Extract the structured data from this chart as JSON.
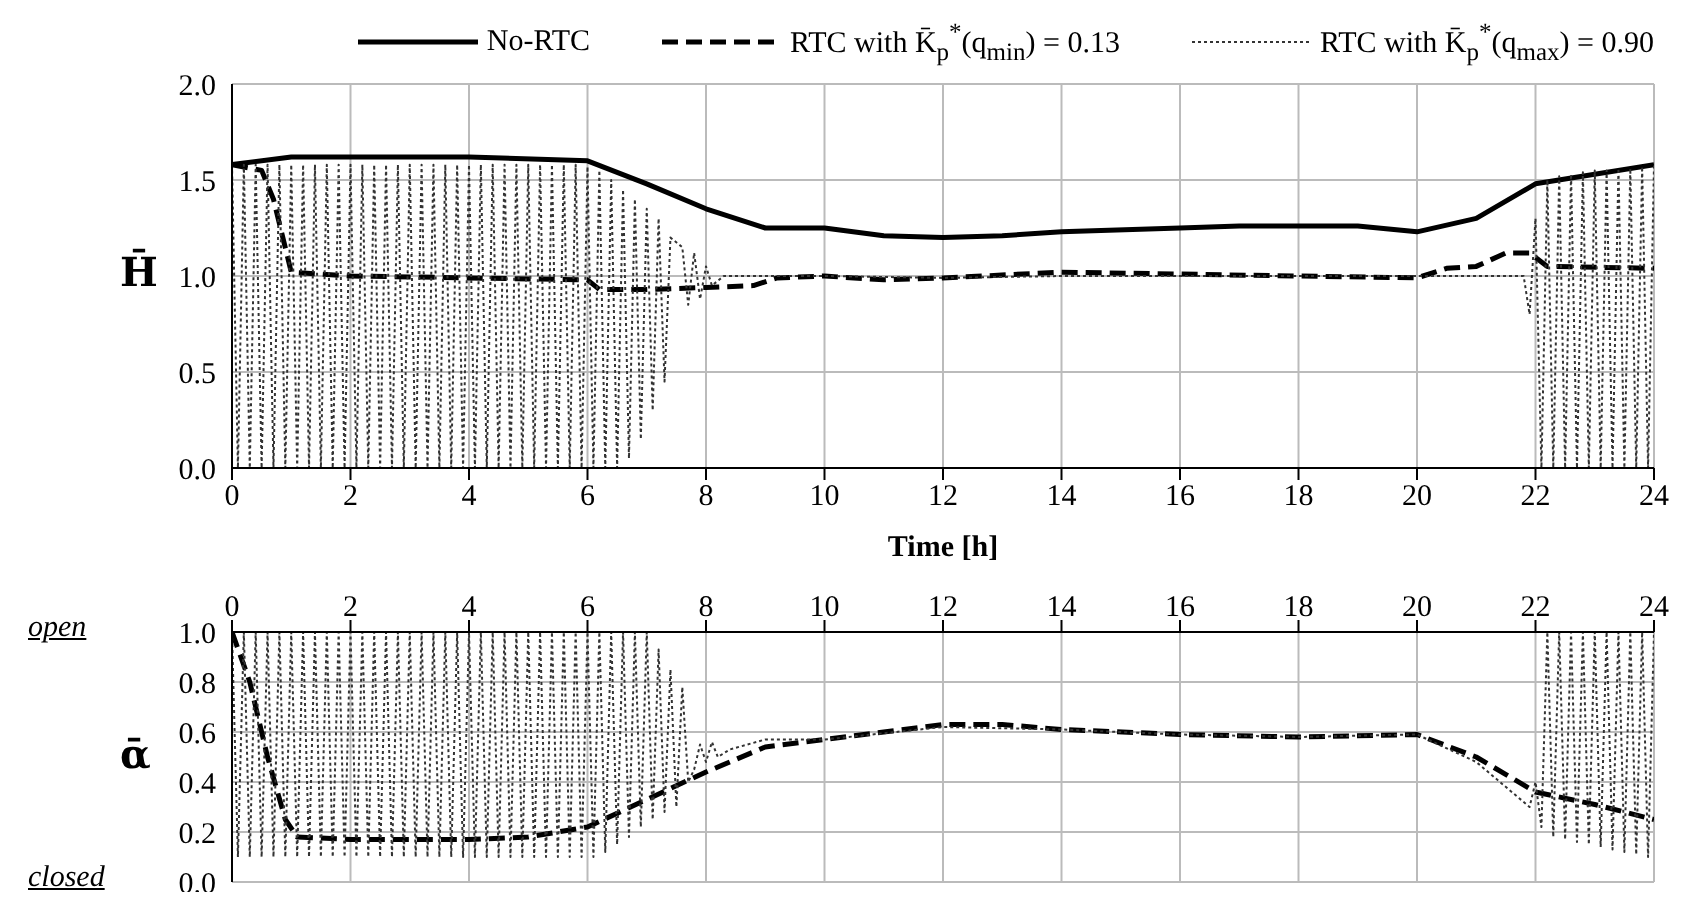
{
  "chart_data": [
    {
      "type": "line",
      "xlabel": "Time [h]",
      "ylabel": "H̄",
      "xlim": [
        0,
        24
      ],
      "xticks": [
        0,
        2,
        4,
        6,
        8,
        10,
        12,
        14,
        16,
        18,
        20,
        22,
        24
      ],
      "ylim": [
        0,
        2
      ],
      "yticks": [
        {
          "value": 0,
          "label": "0.0"
        },
        {
          "value": 0.5,
          "label": "0.5"
        },
        {
          "value": 1,
          "label": "1.0"
        },
        {
          "value": 1.5,
          "label": "1.5"
        },
        {
          "value": 2,
          "label": "2.0"
        }
      ],
      "grid": true,
      "legend": "top",
      "marker": "none",
      "series": [
        {
          "name": "No-RTC",
          "color": "#000000",
          "line_style": "solid",
          "x": [
            0,
            1,
            2,
            4,
            6,
            7,
            8,
            9,
            10,
            11,
            12,
            13,
            14,
            16,
            17,
            19,
            20,
            21,
            22,
            24
          ],
          "values": [
            1.58,
            1.62,
            1.62,
            1.62,
            1.6,
            1.48,
            1.35,
            1.25,
            1.25,
            1.21,
            1.2,
            1.21,
            1.23,
            1.25,
            1.26,
            1.26,
            1.23,
            1.3,
            1.48,
            1.58
          ]
        },
        {
          "name": "RTC with K̄$_{p}$$^{*}$(q$_{min}$) = 0.13",
          "color": "#000000",
          "line_style": "dashed",
          "x": [
            0,
            0.5,
            0.7,
            1,
            2,
            4,
            6,
            6.2,
            7,
            8,
            8.8,
            9.2,
            10,
            11,
            12,
            14,
            16,
            18,
            20,
            20.5,
            21,
            21.5,
            21.9,
            22.2,
            24
          ],
          "values": [
            1.58,
            1.55,
            1.4,
            1.02,
            1,
            0.99,
            0.98,
            0.93,
            0.93,
            0.94,
            0.95,
            0.99,
            1,
            0.98,
            0.99,
            1.02,
            1.01,
            1,
            0.99,
            1.04,
            1.05,
            1.12,
            1.12,
            1.05,
            1.04
          ]
        },
        {
          "name": "RTC with K̄$_{p}$$^{*}$(q$_{max}$) = 0.90",
          "color": "#333333",
          "line_style": "dotted",
          "x": [
            0,
            0.1,
            0.2,
            0.3,
            0.4,
            0.5,
            0.6,
            0.7,
            0.8,
            0.9,
            1,
            1.1,
            1.2,
            1.3,
            1.4,
            1.5,
            1.6,
            1.7,
            1.8,
            1.9,
            2,
            2.1,
            2.2,
            2.3,
            2.4,
            2.5,
            2.6,
            2.7,
            2.8,
            2.9,
            3,
            3.1,
            3.2,
            3.3,
            3.4,
            3.5,
            3.6,
            3.7,
            3.8,
            3.9,
            4,
            4.1,
            4.2,
            4.3,
            4.4,
            4.5,
            4.6,
            4.7,
            4.8,
            4.9,
            5,
            5.1,
            5.2,
            5.3,
            5.4,
            5.5,
            5.6,
            5.7,
            5.8,
            5.9,
            6,
            6.1,
            6.2,
            6.3,
            6.4,
            6.5,
            6.6,
            6.7,
            6.8,
            6.9,
            7,
            7.1,
            7.2,
            7.3,
            7.4,
            7.6,
            7.7,
            7.8,
            7.9,
            8,
            8.1,
            8.3,
            9,
            10,
            12,
            14,
            16,
            18,
            20,
            21,
            21.8,
            21.9,
            22,
            22.1,
            22.2,
            22.3,
            22.4,
            22.5,
            22.6,
            22.7,
            22.8,
            22.9,
            23,
            23.1,
            23.2,
            23.3,
            23.4,
            23.5,
            23.6,
            23.7,
            23.8,
            23.9,
            24
          ],
          "values": [
            1.58,
            0,
            1.58,
            0,
            1.58,
            0,
            1.58,
            0,
            1.58,
            0,
            1.58,
            0,
            1.58,
            0,
            1.58,
            0,
            1.58,
            0,
            1.58,
            0,
            1.58,
            0,
            1.58,
            0,
            1.58,
            0,
            1.58,
            0,
            1.58,
            0,
            1.58,
            0,
            1.58,
            0,
            1.58,
            0,
            1.58,
            0,
            1.58,
            0,
            1.58,
            0,
            1.58,
            0,
            1.58,
            0,
            1.58,
            0,
            1.58,
            0,
            1.58,
            0,
            1.58,
            0,
            1.58,
            0,
            1.58,
            0,
            1.58,
            0,
            1.57,
            0,
            1.55,
            0,
            1.5,
            0,
            1.45,
            0.05,
            1.4,
            0.15,
            1.35,
            0.3,
            1.3,
            0.45,
            1.2,
            1.15,
            0.85,
            1.12,
            0.88,
            1.05,
            0.95,
            1,
            1,
            1,
            0.99,
            1,
            1,
            1,
            1,
            1,
            1,
            0.8,
            1.3,
            0,
            1.5,
            0,
            1.52,
            0,
            1.53,
            0,
            1.54,
            0,
            1.55,
            0,
            1.55,
            0,
            1.56,
            0,
            1.56,
            0,
            1.57,
            0,
            1.58
          ]
        }
      ]
    },
    {
      "type": "line",
      "ylabel": "ᾱ",
      "xlim": [
        0,
        24
      ],
      "xticks": [
        0,
        2,
        4,
        6,
        8,
        10,
        12,
        14,
        16,
        18,
        20,
        22,
        24
      ],
      "ylim": [
        0,
        1
      ],
      "yticks": [
        {
          "value": 0,
          "label": "0.0"
        },
        {
          "value": 0.2,
          "label": "0.2"
        },
        {
          "value": 0.4,
          "label": "0.4"
        },
        {
          "value": 0.6,
          "label": "0.6"
        },
        {
          "value": 0.8,
          "label": "0.8"
        },
        {
          "value": 1,
          "label": "1.0"
        }
      ],
      "grid": true,
      "marker": "none",
      "annotations": [
        "open",
        "closed"
      ],
      "series": [
        {
          "color": "#000000",
          "line_style": "dashed",
          "x": [
            0,
            0.3,
            0.6,
            0.9,
            1.1,
            2,
            4,
            5,
            6,
            7,
            8,
            9,
            10,
            11,
            12,
            13,
            14,
            16,
            18,
            20,
            21,
            22,
            23,
            24
          ],
          "values": [
            1,
            0.8,
            0.5,
            0.25,
            0.18,
            0.17,
            0.17,
            0.18,
            0.22,
            0.33,
            0.44,
            0.54,
            0.57,
            0.6,
            0.63,
            0.63,
            0.61,
            0.59,
            0.58,
            0.59,
            0.5,
            0.36,
            0.31,
            0.25
          ]
        },
        {
          "color": "#333333",
          "line_style": "dotted",
          "x": [
            0,
            0.1,
            0.2,
            0.3,
            0.4,
            0.5,
            0.6,
            0.7,
            0.8,
            0.9,
            1,
            1.1,
            1.2,
            1.3,
            1.4,
            1.5,
            1.6,
            1.7,
            1.8,
            1.9,
            2,
            2.1,
            2.2,
            2.3,
            2.4,
            2.5,
            2.6,
            2.7,
            2.8,
            2.9,
            3,
            3.1,
            3.2,
            3.3,
            3.4,
            3.5,
            3.6,
            3.7,
            3.8,
            3.9,
            4,
            4.1,
            4.2,
            4.3,
            4.4,
            4.5,
            4.6,
            4.7,
            4.8,
            4.9,
            5,
            5.1,
            5.2,
            5.3,
            5.4,
            5.5,
            5.6,
            5.7,
            5.8,
            5.9,
            6,
            6.1,
            6.2,
            6.3,
            6.4,
            6.5,
            6.6,
            6.7,
            6.8,
            6.9,
            7,
            7.1,
            7.2,
            7.3,
            7.4,
            7.5,
            7.6,
            7.7,
            7.8,
            7.9,
            8,
            8.1,
            8.2,
            8.4,
            9,
            10,
            12,
            14,
            16,
            18,
            20,
            21,
            21.9,
            22,
            22.1,
            22.2,
            22.3,
            22.4,
            22.5,
            22.6,
            22.7,
            22.8,
            22.9,
            23,
            23.1,
            23.2,
            23.3,
            23.4,
            23.5,
            23.6,
            23.7,
            23.8,
            23.9,
            24
          ],
          "values": [
            1,
            0.1,
            1,
            0.1,
            1,
            0.1,
            1,
            0.1,
            1,
            0.1,
            1,
            0.1,
            1,
            0.1,
            1,
            0.1,
            1,
            0.1,
            1,
            0.1,
            1,
            0.1,
            1,
            0.1,
            1,
            0.1,
            1,
            0.1,
            1,
            0.1,
            1,
            0.1,
            1,
            0.1,
            1,
            0.1,
            1,
            0.1,
            1,
            0.1,
            1,
            0.1,
            1,
            0.1,
            1,
            0.1,
            1,
            0.1,
            1,
            0.1,
            1,
            0.1,
            1,
            0.1,
            1,
            0.1,
            1,
            0.1,
            1,
            0.1,
            1,
            0.1,
            1,
            0.12,
            1,
            0.15,
            1,
            0.18,
            1,
            0.22,
            1,
            0.25,
            0.93,
            0.28,
            0.85,
            0.3,
            0.78,
            0.4,
            0.45,
            0.55,
            0.48,
            0.56,
            0.5,
            0.53,
            0.57,
            0.57,
            0.62,
            0.61,
            0.59,
            0.58,
            0.59,
            0.48,
            0.3,
            0.4,
            0.22,
            1,
            0.18,
            1,
            0.17,
            1,
            0.16,
            1,
            0.15,
            1,
            0.14,
            1,
            0.13,
            1,
            0.12,
            1,
            0.11,
            1,
            0.1,
            1
          ]
        }
      ]
    }
  ]
}
